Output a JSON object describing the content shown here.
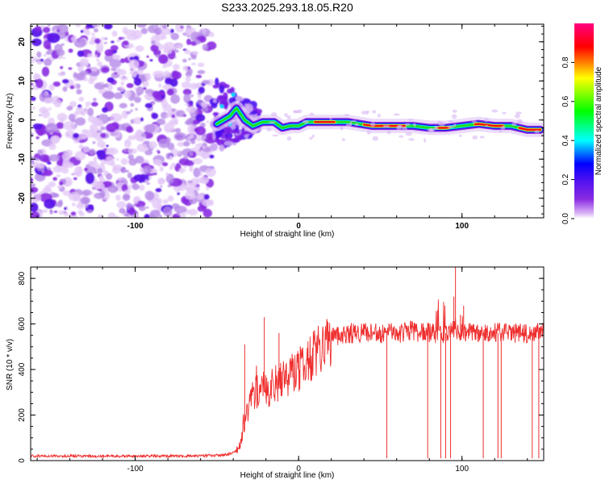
{
  "title": "S233.2025.293.18.05.R20",
  "chart_data": [
    {
      "type": "heatmap",
      "name": "spectrogram",
      "xlabel": "Height of straight line (km)",
      "ylabel": "Frequency (Hz)",
      "xlim": [
        -164,
        150
      ],
      "ylim": [
        -25,
        24.5
      ],
      "xticks": [
        -100,
        0,
        100
      ],
      "yticks": [
        -20,
        -10,
        0,
        10,
        20
      ],
      "noise_region_x": [
        -164,
        -53
      ],
      "track": {
        "x": [
          -50,
          -42,
          -38,
          -33,
          -28,
          -22,
          -15,
          -10,
          -5,
          0,
          5,
          15,
          30,
          45,
          60,
          70,
          80,
          90,
          100,
          110,
          120,
          130,
          140,
          148
        ],
        "freq": [
          -1,
          1,
          3,
          0,
          -1.5,
          -0.5,
          -0.5,
          -2,
          -1.5,
          -1.5,
          -0.5,
          -0.5,
          -0.5,
          -1.5,
          -1.5,
          -1.5,
          -2,
          -2,
          -1.5,
          -1,
          -1.5,
          -1.5,
          -2.5,
          -2.5
        ]
      },
      "colorbar": {
        "label": "Normalized spectral amplitude",
        "range": [
          0,
          1
        ],
        "ticks": [
          "0.0",
          "0.2",
          "0.4",
          "0.6",
          "0.8"
        ],
        "colors": [
          "#ffffff",
          "#d7b0f5",
          "#8a2be2",
          "#4b10f0",
          "#0000ff",
          "#00ffff",
          "#00ff00",
          "#ffff00",
          "#ff0000",
          "#ff0080"
        ]
      }
    },
    {
      "type": "line",
      "name": "snr",
      "xlabel": "Height of straight line (km)",
      "ylabel": "SNR (10 * v/v)",
      "xlim": [
        -164,
        150
      ],
      "ylim": [
        0,
        850
      ],
      "xticks": [
        -100,
        0,
        100
      ],
      "yticks": [
        0,
        200,
        400,
        600,
        800
      ],
      "color": "#ef2f2f",
      "series": [
        {
          "name": "SNR",
          "x": [
            -164,
            -150,
            -120,
            -100,
            -80,
            -60,
            -45,
            -40,
            -36,
            -34,
            -32,
            -30,
            -28,
            -26,
            -24,
            -22,
            -20,
            -15,
            -10,
            -5,
            0,
            5,
            10,
            15,
            20,
            25,
            30,
            40,
            50,
            60,
            70,
            80,
            90,
            96,
            100,
            110,
            120,
            130,
            140,
            150
          ],
          "y": [
            20,
            20,
            20,
            20,
            20,
            20,
            25,
            35,
            60,
            120,
            200,
            250,
            280,
            300,
            320,
            330,
            300,
            330,
            360,
            380,
            400,
            430,
            470,
            520,
            540,
            550,
            560,
            560,
            560,
            560,
            570,
            560,
            560,
            580,
            570,
            560,
            560,
            560,
            560,
            560
          ]
        }
      ],
      "spikes_up": [
        {
          "x": -33,
          "y": 510
        },
        {
          "x": -21,
          "y": 630
        },
        {
          "x": -12,
          "y": 560
        },
        {
          "x": 85,
          "y": 660
        },
        {
          "x": 95,
          "y": 720
        },
        {
          "x": 96,
          "y": 850
        },
        {
          "x": 99,
          "y": 640
        },
        {
          "x": 101,
          "y": 680
        }
      ],
      "dropouts": [
        {
          "x": 54,
          "y": 10
        },
        {
          "x": 79,
          "y": 10
        },
        {
          "x": 87,
          "y": 10
        },
        {
          "x": 90,
          "y": 10
        },
        {
          "x": 93,
          "y": 10
        },
        {
          "x": 113,
          "y": 10
        },
        {
          "x": 122,
          "y": 10
        },
        {
          "x": 124,
          "y": 10
        },
        {
          "x": 143,
          "y": 10
        },
        {
          "x": 147,
          "y": 10
        }
      ]
    }
  ]
}
